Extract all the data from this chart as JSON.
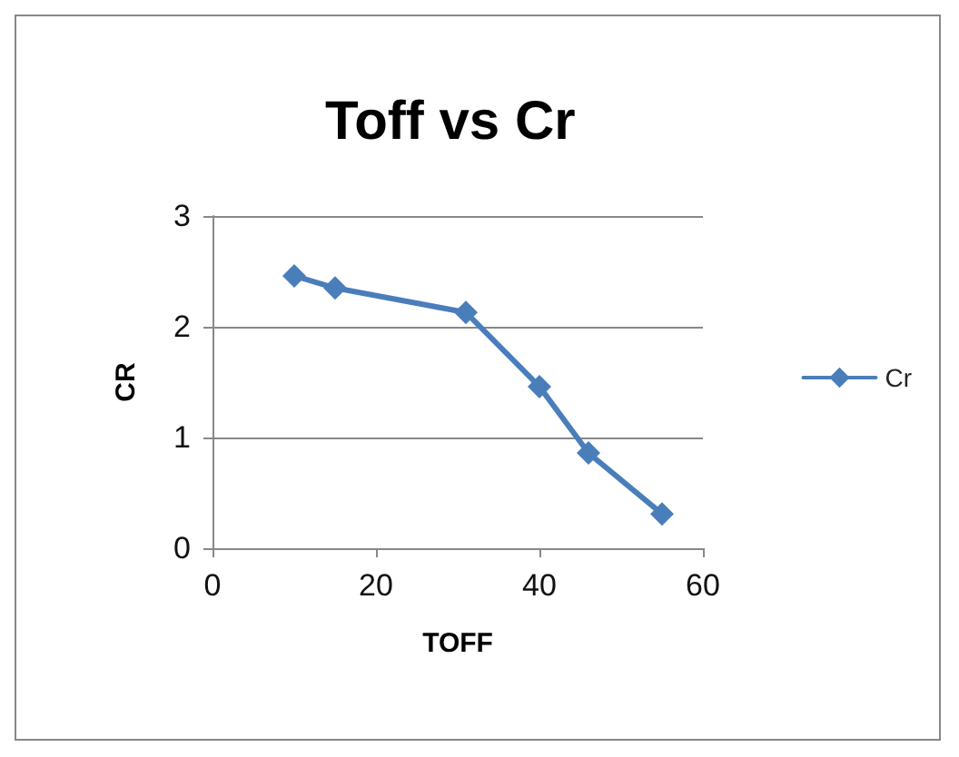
{
  "chart_data": {
    "type": "line",
    "title": "Toff vs Cr",
    "xlabel": "TOFF",
    "ylabel": "CR",
    "x": [
      10,
      15,
      31,
      40,
      46,
      55
    ],
    "series": [
      {
        "name": "Cr",
        "color": "#4a7ebb",
        "values": [
          2.46,
          2.35,
          2.13,
          1.46,
          0.86,
          0.31
        ]
      }
    ],
    "xlim": [
      0,
      60
    ],
    "xticks": [
      0,
      20,
      40,
      60
    ],
    "ylim": [
      0,
      3
    ],
    "yticks": [
      0,
      1,
      2,
      3
    ],
    "grid": "y",
    "legend": "right",
    "marker": "diamond",
    "line_style": "solid"
  }
}
